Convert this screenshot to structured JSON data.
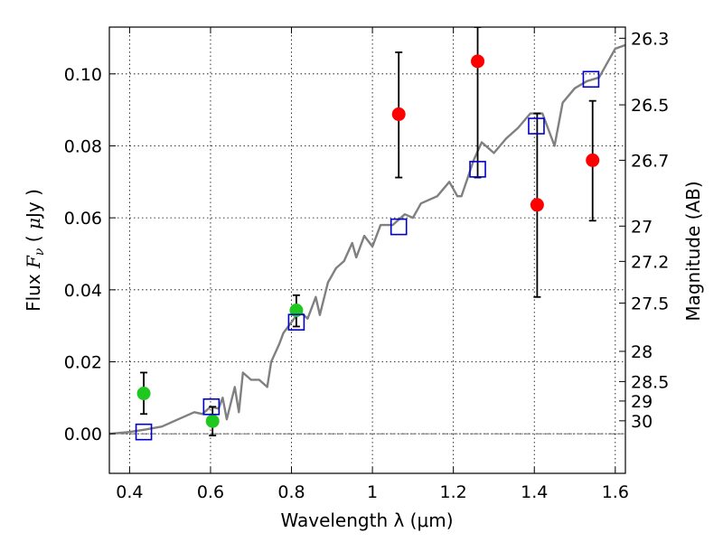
{
  "chart_data": {
    "type": "scatter",
    "xlabel": "Wavelength  λ (μm)",
    "ylabel": "Flux  F_ν  ( μJy )",
    "ylabel_right": "Magnitude (AB)",
    "xlim": [
      0.35,
      1.625
    ],
    "ylim": [
      -0.011,
      0.113
    ],
    "grid": true,
    "x_ticks": [
      0.4,
      0.6,
      0.8,
      1.0,
      1.2,
      1.4,
      1.6
    ],
    "x_tick_labels": [
      "0.4",
      "0.6",
      "0.8",
      "1",
      "1.2",
      "1.4",
      "1.6"
    ],
    "y_ticks": [
      0.0,
      0.02,
      0.04,
      0.06,
      0.08,
      0.1
    ],
    "y_tick_labels": [
      "0.00",
      "0.02",
      "0.04",
      "0.06",
      "0.08",
      "0.10"
    ],
    "mag_ticks": [
      {
        "label": "26.3",
        "flux": 0.1099
      },
      {
        "label": "26.5",
        "flux": 0.0914
      },
      {
        "label": "26.7",
        "flux": 0.076
      },
      {
        "label": "27",
        "flux": 0.0577
      },
      {
        "label": "27.2",
        "flux": 0.0479
      },
      {
        "label": "27.5",
        "flux": 0.0363
      },
      {
        "label": "28",
        "flux": 0.0229
      },
      {
        "label": "28.5",
        "flux": 0.0145
      },
      {
        "label": "29",
        "flux": 0.0091
      },
      {
        "label": "30",
        "flux": 0.0036
      }
    ],
    "colors": {
      "model": "#808080",
      "green_points": "#1ec81e",
      "red_points": "#ff0000",
      "squares": "#0000cc",
      "errorbars": "#000000"
    },
    "series": [
      {
        "kind": "line",
        "points": [
          [
            0.35,
            0.0
          ],
          [
            0.4,
            0.0005
          ],
          [
            0.44,
            0.0012
          ],
          [
            0.48,
            0.002
          ],
          [
            0.52,
            0.004
          ],
          [
            0.56,
            0.006
          ],
          [
            0.58,
            0.0055
          ],
          [
            0.6,
            0.0075
          ],
          [
            0.62,
            0.007
          ],
          [
            0.63,
            0.01
          ],
          [
            0.64,
            0.004
          ],
          [
            0.66,
            0.013
          ],
          [
            0.67,
            0.006
          ],
          [
            0.68,
            0.017
          ],
          [
            0.7,
            0.015
          ],
          [
            0.72,
            0.015
          ],
          [
            0.74,
            0.013
          ],
          [
            0.75,
            0.02
          ],
          [
            0.77,
            0.025
          ],
          [
            0.78,
            0.028
          ],
          [
            0.8,
            0.031
          ],
          [
            0.82,
            0.034
          ],
          [
            0.84,
            0.032
          ],
          [
            0.86,
            0.038
          ],
          [
            0.87,
            0.033
          ],
          [
            0.89,
            0.042
          ],
          [
            0.91,
            0.046
          ],
          [
            0.93,
            0.048
          ],
          [
            0.95,
            0.053
          ],
          [
            0.96,
            0.049
          ],
          [
            0.98,
            0.055
          ],
          [
            1.0,
            0.052
          ],
          [
            1.02,
            0.058
          ],
          [
            1.05,
            0.058
          ],
          [
            1.08,
            0.061
          ],
          [
            1.1,
            0.06
          ],
          [
            1.12,
            0.064
          ],
          [
            1.16,
            0.066
          ],
          [
            1.19,
            0.07
          ],
          [
            1.21,
            0.066
          ],
          [
            1.22,
            0.066
          ],
          [
            1.25,
            0.076
          ],
          [
            1.27,
            0.081
          ],
          [
            1.3,
            0.078
          ],
          [
            1.33,
            0.082
          ],
          [
            1.36,
            0.085
          ],
          [
            1.39,
            0.089
          ],
          [
            1.42,
            0.089
          ],
          [
            1.45,
            0.08
          ],
          [
            1.47,
            0.092
          ],
          [
            1.5,
            0.096
          ],
          [
            1.53,
            0.098
          ],
          [
            1.56,
            0.099
          ],
          [
            1.58,
            0.103
          ],
          [
            1.6,
            0.107
          ],
          [
            1.625,
            0.108
          ]
        ]
      },
      {
        "kind": "errorbar-points",
        "marker": "circle",
        "color_key": "green_points",
        "points": [
          {
            "x": 0.435,
            "y": 0.0112,
            "lo": 0.0055,
            "hi": 0.017
          },
          {
            "x": 0.605,
            "y": 0.0035,
            "lo": -0.0005,
            "hi": 0.0075
          },
          {
            "x": 0.812,
            "y": 0.0343,
            "lo": 0.0298,
            "hi": 0.0385
          }
        ]
      },
      {
        "kind": "errorbar-points",
        "marker": "circle",
        "color_key": "red_points",
        "points": [
          {
            "x": 1.065,
            "y": 0.0888,
            "lo": 0.0712,
            "hi": 0.106
          },
          {
            "x": 1.26,
            "y": 0.1035,
            "lo": 0.0712,
            "hi": 0.113
          },
          {
            "x": 1.407,
            "y": 0.0636,
            "lo": 0.038,
            "hi": 0.089
          },
          {
            "x": 1.544,
            "y": 0.076,
            "lo": 0.0592,
            "hi": 0.0925
          }
        ]
      },
      {
        "kind": "markers",
        "marker": "square",
        "color_key": "squares",
        "points": [
          {
            "x": 0.435,
            "y": 0.0005
          },
          {
            "x": 0.602,
            "y": 0.0075
          },
          {
            "x": 0.812,
            "y": 0.031
          },
          {
            "x": 1.065,
            "y": 0.0575
          },
          {
            "x": 1.26,
            "y": 0.0735
          },
          {
            "x": 1.405,
            "y": 0.0855
          },
          {
            "x": 1.54,
            "y": 0.0985
          }
        ]
      }
    ]
  }
}
